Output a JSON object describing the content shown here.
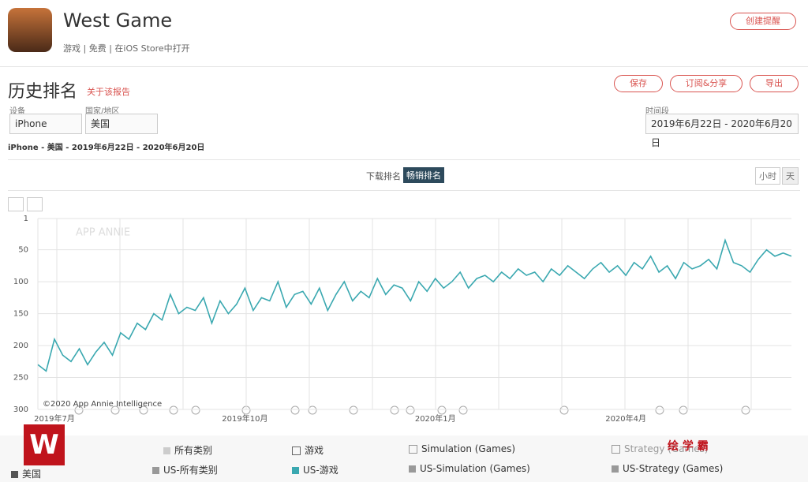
{
  "header": {
    "app_name": "West Game",
    "meta": [
      "游戏",
      "免费",
      "在iOS Store中打开"
    ],
    "alert_button": "创建提醒"
  },
  "report": {
    "title": "历史排名",
    "about_link": "关于该报告",
    "buttons": [
      "保存",
      "订阅&分享",
      "导出"
    ],
    "device_label": "设备",
    "device_value": "iPhone",
    "country_label": "国家/地区",
    "country_value": "美国",
    "period_label": "时间段",
    "period_value": "2019年6月22日 - 2020年6月20日",
    "summary": "iPhone - 美国 - 2019年6月22日 - 2020年6月20日",
    "tabs": [
      "下载排名",
      "畅销排名"
    ],
    "granularity": [
      "小时",
      "天"
    ],
    "watermark": "APP ANNIE",
    "copyright": "©2020 App Annie Intelligence"
  },
  "legend": {
    "categories": [
      "所有类别",
      "游戏",
      "Simulation (Games)",
      "Strategy (Games)"
    ],
    "country": "美国",
    "series": [
      "US-所有类别",
      "US-Simulation (Games)",
      "US-Strategy (Games)"
    ]
  },
  "overlay": "绘 学 霸",
  "chart_data": {
    "type": "line",
    "categories": [
      null,
      null,
      "2019年7月",
      null,
      null,
      null,
      null,
      null,
      null,
      null,
      null,
      null,
      null,
      null,
      null,
      null,
      null,
      null,
      null,
      null,
      null,
      null,
      null,
      null,
      null,
      "2019年10月",
      null,
      null,
      null,
      null,
      null,
      null,
      null,
      null,
      null,
      null,
      null,
      null,
      null,
      null,
      null,
      null,
      null,
      null,
      null,
      null,
      null,
      null,
      "2020年1月",
      null,
      null,
      null,
      null,
      null,
      null,
      null,
      null,
      null,
      null,
      null,
      null,
      null,
      null,
      null,
      null,
      null,
      null,
      null,
      null,
      null,
      null,
      "2020年4月",
      null,
      null,
      null,
      null,
      null,
      null,
      null,
      null,
      null,
      null,
      null,
      null,
      null,
      null,
      null,
      null,
      null,
      null,
      null,
      null
    ],
    "series": [
      {
        "name": "US-游戏",
        "color": "#3aa8b0",
        "values": [
          230,
          240,
          190,
          215,
          225,
          205,
          230,
          210,
          195,
          215,
          180,
          190,
          165,
          175,
          150,
          160,
          120,
          150,
          140,
          145,
          125,
          165,
          130,
          150,
          135,
          110,
          145,
          125,
          130,
          100,
          140,
          120,
          115,
          135,
          110,
          145,
          120,
          100,
          130,
          115,
          125,
          95,
          120,
          105,
          110,
          130,
          100,
          115,
          95,
          110,
          100,
          85,
          110,
          95,
          90,
          100,
          85,
          95,
          80,
          90,
          85,
          100,
          80,
          90,
          75,
          85,
          95,
          80,
          70,
          85,
          75,
          90,
          70,
          80,
          60,
          85,
          75,
          95,
          70,
          80,
          75,
          65,
          80,
          35,
          70,
          75,
          85,
          65,
          50,
          60,
          55,
          60
        ]
      }
    ],
    "ylim": [
      300,
      1
    ],
    "yticks": [
      1,
      50,
      100,
      150,
      200,
      250,
      300
    ],
    "grid": true
  }
}
